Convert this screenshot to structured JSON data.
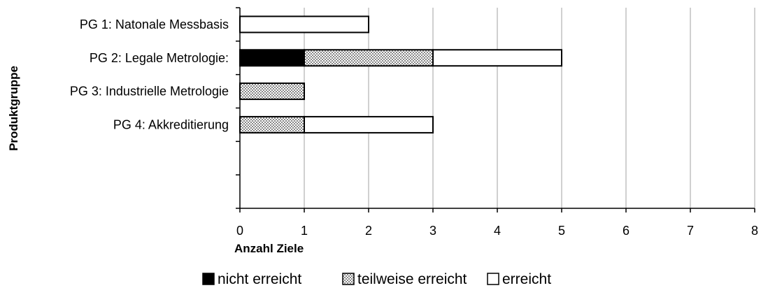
{
  "chart_data": {
    "type": "bar",
    "orientation": "horizontal",
    "stacked": true,
    "categories": [
      "PG 1: Natonale Messbasis",
      "PG 2: Legale Metrologie:",
      "PG 3:  Industrielle Metrologie",
      "PG 4: Akkreditierung",
      ""
    ],
    "series": [
      {
        "name": "nicht erreicht",
        "values": [
          0,
          1,
          0,
          0,
          0
        ],
        "color": "#000000",
        "pattern": "solid"
      },
      {
        "name": "teilweise erreicht",
        "values": [
          0,
          2,
          1,
          1,
          0
        ],
        "color": "#c8c8c8",
        "pattern": "checker"
      },
      {
        "name": "erreicht",
        "values": [
          2,
          2,
          0,
          2,
          0
        ],
        "color": "#ffffff",
        "pattern": "none"
      }
    ],
    "xlabel": "Anzahl Ziele",
    "ylabel": "Produktgruppe",
    "xlim": [
      0,
      8
    ],
    "xticks": [
      "0",
      "1",
      "2",
      "3",
      "4",
      "5",
      "6",
      "7",
      "8"
    ],
    "grid": "vertical",
    "legend": "bottom"
  }
}
